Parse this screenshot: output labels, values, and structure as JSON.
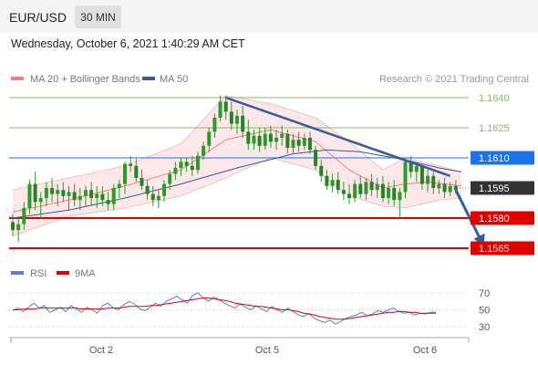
{
  "header": {
    "symbol": "EUR/USD",
    "timeframe": "30 MIN",
    "timestamp": "Wednesday, October 6, 2021 1:40:29 AM CET"
  },
  "colors": {
    "ma20": "#f08080",
    "ma50": "#3a5a9a",
    "candle": "#2e9a2e",
    "support": "#e00000",
    "target": "#1a73e8",
    "resistance": "#80c060",
    "trendline": "#3a5a9a",
    "arrow": "#2f5fa3",
    "rsi": "#5b7fd6",
    "rsi_ma": "#e00000",
    "current": "#333333"
  },
  "chart_data": [
    {
      "type": "candlestick",
      "title": "",
      "legend": [
        "MA 20 + Bollinger Bands",
        "MA 50"
      ],
      "legend_placement": "top-left",
      "credit": "Research © 2021 Trading Central",
      "x_ticks": [
        "Oct 2",
        "Oct 5",
        "Oct 6"
      ],
      "ylim": [
        1.1555,
        1.1648
      ],
      "current_price": 1.1595,
      "levels": [
        {
          "label": "1.1640",
          "value": 1.164,
          "role": "resistance"
        },
        {
          "label": "1.1625",
          "value": 1.1625,
          "role": "resistance"
        },
        {
          "label": "1.1610",
          "value": 1.161,
          "role": "target"
        },
        {
          "label": "1.1595",
          "value": 1.1595,
          "role": "current"
        },
        {
          "label": "1.1580",
          "value": 1.158,
          "role": "support"
        },
        {
          "label": "1.1565",
          "value": 1.1565,
          "role": "support"
        }
      ],
      "trendline": [
        {
          "x": 38,
          "y": 1.164
        },
        {
          "x": 78,
          "y": 1.1601
        }
      ],
      "arrow": [
        {
          "x": 79,
          "y": 1.1594
        },
        {
          "x": 84,
          "y": 1.1566
        }
      ],
      "candles": [
        [
          1.1578,
          1.1582,
          1.1571,
          1.1574
        ],
        [
          1.1574,
          1.158,
          1.1568,
          1.1577
        ],
        [
          1.1577,
          1.1588,
          1.1574,
          1.1585
        ],
        [
          1.1585,
          1.1599,
          1.1582,
          1.1597
        ],
        [
          1.1597,
          1.1603,
          1.1584,
          1.1588
        ],
        [
          1.1588,
          1.1593,
          1.158,
          1.159
        ],
        [
          1.159,
          1.1598,
          1.1586,
          1.1595
        ],
        [
          1.1595,
          1.16,
          1.1588,
          1.1592
        ],
        [
          1.1592,
          1.1597,
          1.1586,
          1.1594
        ],
        [
          1.1594,
          1.1598,
          1.1588,
          1.1591
        ],
        [
          1.1591,
          1.1596,
          1.1584,
          1.1593
        ],
        [
          1.1593,
          1.1597,
          1.1586,
          1.1589
        ],
        [
          1.1589,
          1.1595,
          1.1584,
          1.1591
        ],
        [
          1.1591,
          1.1596,
          1.1586,
          1.1594
        ],
        [
          1.1594,
          1.1598,
          1.1586,
          1.159
        ],
        [
          1.159,
          1.1596,
          1.1585,
          1.1592
        ],
        [
          1.1592,
          1.1596,
          1.1586,
          1.1589
        ],
        [
          1.1589,
          1.1593,
          1.1584,
          1.1587
        ],
        [
          1.1587,
          1.1597,
          1.1584,
          1.1595
        ],
        [
          1.1595,
          1.1599,
          1.159,
          1.1597
        ],
        [
          1.1597,
          1.1608,
          1.1592,
          1.1607
        ],
        [
          1.1607,
          1.1611,
          1.1603,
          1.1606
        ],
        [
          1.1606,
          1.161,
          1.1598,
          1.16
        ],
        [
          1.16,
          1.1604,
          1.1594,
          1.1596
        ],
        [
          1.1596,
          1.1599,
          1.1589,
          1.1592
        ],
        [
          1.1592,
          1.1596,
          1.1586,
          1.1589
        ],
        [
          1.1589,
          1.1594,
          1.1585,
          1.1591
        ],
        [
          1.1591,
          1.1599,
          1.1588,
          1.1597
        ],
        [
          1.1597,
          1.1604,
          1.1594,
          1.1602
        ],
        [
          1.1602,
          1.1608,
          1.1599,
          1.1605
        ],
        [
          1.1605,
          1.161,
          1.1601,
          1.1608
        ],
        [
          1.1608,
          1.161,
          1.1603,
          1.1606
        ],
        [
          1.1606,
          1.1611,
          1.1601,
          1.1604
        ],
        [
          1.1604,
          1.1613,
          1.1602,
          1.1611
        ],
        [
          1.1611,
          1.1618,
          1.1609,
          1.1616
        ],
        [
          1.1616,
          1.1625,
          1.1613,
          1.1623
        ],
        [
          1.1623,
          1.1632,
          1.162,
          1.163
        ],
        [
          1.163,
          1.1641,
          1.1628,
          1.1638
        ],
        [
          1.1638,
          1.1641,
          1.1629,
          1.1633
        ],
        [
          1.1633,
          1.1638,
          1.1624,
          1.1627
        ],
        [
          1.1627,
          1.1634,
          1.1622,
          1.1631
        ],
        [
          1.1631,
          1.1636,
          1.162,
          1.1623
        ],
        [
          1.1623,
          1.1629,
          1.1614,
          1.1617
        ],
        [
          1.1617,
          1.1624,
          1.1614,
          1.1621
        ],
        [
          1.1621,
          1.1625,
          1.1613,
          1.1616
        ],
        [
          1.1616,
          1.1625,
          1.1614,
          1.1622
        ],
        [
          1.1622,
          1.1626,
          1.1615,
          1.1618
        ],
        [
          1.1618,
          1.1624,
          1.1614,
          1.162
        ],
        [
          1.162,
          1.1626,
          1.1616,
          1.1622
        ],
        [
          1.1622,
          1.1624,
          1.1612,
          1.1615
        ],
        [
          1.1615,
          1.1622,
          1.1612,
          1.1619
        ],
        [
          1.1619,
          1.1623,
          1.1613,
          1.1616
        ],
        [
          1.1616,
          1.1622,
          1.1614,
          1.162
        ],
        [
          1.162,
          1.1623,
          1.1612,
          1.1614
        ],
        [
          1.1614,
          1.1616,
          1.1604,
          1.1606
        ],
        [
          1.1606,
          1.1609,
          1.1598,
          1.1601
        ],
        [
          1.1601,
          1.1604,
          1.1594,
          1.1596
        ],
        [
          1.1596,
          1.1602,
          1.1593,
          1.1599
        ],
        [
          1.1599,
          1.1603,
          1.1592,
          1.1594
        ],
        [
          1.1594,
          1.1598,
          1.1589,
          1.1592
        ],
        [
          1.1592,
          1.1597,
          1.1587,
          1.159
        ],
        [
          1.159,
          1.1599,
          1.1588,
          1.1597
        ],
        [
          1.1597,
          1.1601,
          1.159,
          1.1592
        ],
        [
          1.1592,
          1.16,
          1.1589,
          1.1598
        ],
        [
          1.1598,
          1.1602,
          1.1591,
          1.1594
        ],
        [
          1.1594,
          1.16,
          1.159,
          1.1597
        ],
        [
          1.1597,
          1.1601,
          1.1588,
          1.159
        ],
        [
          1.159,
          1.1598,
          1.1587,
          1.1595
        ],
        [
          1.1595,
          1.1599,
          1.1586,
          1.1589
        ],
        [
          1.1589,
          1.1595,
          1.158,
          1.1593
        ],
        [
          1.1593,
          1.161,
          1.159,
          1.1608
        ],
        [
          1.1608,
          1.1611,
          1.16,
          1.1603
        ],
        [
          1.1603,
          1.1608,
          1.1598,
          1.1606
        ],
        [
          1.1606,
          1.1607,
          1.1594,
          1.1597
        ],
        [
          1.1597,
          1.1604,
          1.1593,
          1.1601
        ],
        [
          1.1601,
          1.1603,
          1.1592,
          1.1595
        ],
        [
          1.1595,
          1.1599,
          1.1592,
          1.1597
        ],
        [
          1.1597,
          1.16,
          1.159,
          1.1593
        ],
        [
          1.1593,
          1.1598,
          1.1591,
          1.1596
        ],
        [
          1.1596,
          1.1599,
          1.1592,
          1.1594
        ]
      ],
      "ma20": [
        [
          0,
          1.1583
        ],
        [
          10,
          1.1589
        ],
        [
          20,
          1.1596
        ],
        [
          30,
          1.1604
        ],
        [
          38,
          1.1619
        ],
        [
          46,
          1.1624
        ],
        [
          54,
          1.1618
        ],
        [
          60,
          1.1604
        ],
        [
          66,
          1.1595
        ],
        [
          70,
          1.1597
        ],
        [
          74,
          1.1598
        ],
        [
          80,
          1.1596
        ]
      ],
      "bb_upper": [
        [
          0,
          1.1594
        ],
        [
          10,
          1.16
        ],
        [
          20,
          1.1606
        ],
        [
          30,
          1.1617
        ],
        [
          38,
          1.1641
        ],
        [
          46,
          1.1637
        ],
        [
          54,
          1.163
        ],
        [
          60,
          1.1618
        ],
        [
          66,
          1.1604
        ],
        [
          70,
          1.161
        ],
        [
          76,
          1.1606
        ],
        [
          80,
          1.1603
        ]
      ],
      "bb_lower": [
        [
          0,
          1.1571
        ],
        [
          10,
          1.1581
        ],
        [
          20,
          1.1585
        ],
        [
          30,
          1.1591
        ],
        [
          38,
          1.16
        ],
        [
          46,
          1.161
        ],
        [
          54,
          1.1604
        ],
        [
          60,
          1.1591
        ],
        [
          66,
          1.1586
        ],
        [
          70,
          1.1585
        ],
        [
          76,
          1.1589
        ],
        [
          80,
          1.159
        ]
      ],
      "ma50": [
        [
          0,
          1.158
        ],
        [
          10,
          1.1584
        ],
        [
          20,
          1.159
        ],
        [
          30,
          1.1597
        ],
        [
          40,
          1.1605
        ],
        [
          50,
          1.1612
        ],
        [
          56,
          1.1614
        ],
        [
          62,
          1.1613
        ],
        [
          70,
          1.1609
        ],
        [
          76,
          1.1605
        ],
        [
          80,
          1.1603
        ]
      ]
    },
    {
      "type": "line",
      "legend": [
        "RSI",
        "9MA"
      ],
      "legend_placement": "top-left",
      "y_ticks": [
        "70",
        "50",
        "30"
      ],
      "ylim": [
        25,
        78
      ],
      "series": [
        {
          "name": "RSI",
          "values": [
            49,
            52,
            48,
            53,
            58,
            52,
            55,
            47,
            50,
            53,
            48,
            55,
            51,
            47,
            53,
            50,
            46,
            55,
            58,
            52,
            50,
            56,
            60,
            57,
            51,
            49,
            53,
            58,
            54,
            60,
            63,
            66,
            62,
            58,
            67,
            70,
            64,
            60,
            65,
            62,
            58,
            55,
            52,
            57,
            53,
            50,
            55,
            51,
            48,
            54,
            50,
            47,
            52,
            48,
            44,
            42,
            46,
            40,
            37,
            35,
            38,
            33,
            36,
            40,
            42,
            44,
            47,
            43,
            45,
            49,
            47,
            50,
            52,
            48,
            46,
            47,
            44,
            46,
            45,
            47,
            47
          ]
        },
        {
          "name": "9MA",
          "values": [
            50,
            50,
            51,
            51,
            51,
            52,
            52,
            52,
            52,
            52,
            52,
            52,
            52,
            51,
            51,
            51,
            51,
            51,
            52,
            52,
            52,
            53,
            54,
            54,
            54,
            54,
            55,
            55,
            56,
            57,
            58,
            59,
            60,
            61,
            62,
            63,
            64,
            64,
            63,
            62,
            61,
            60,
            58,
            57,
            56,
            55,
            54,
            54,
            53,
            52,
            51,
            50,
            50,
            49,
            48,
            46,
            45,
            44,
            42,
            41,
            40,
            39,
            39,
            39,
            40,
            41,
            42,
            43,
            44,
            45,
            46,
            47,
            47,
            48,
            48,
            47,
            47,
            46,
            46,
            46,
            46
          ]
        }
      ]
    }
  ]
}
